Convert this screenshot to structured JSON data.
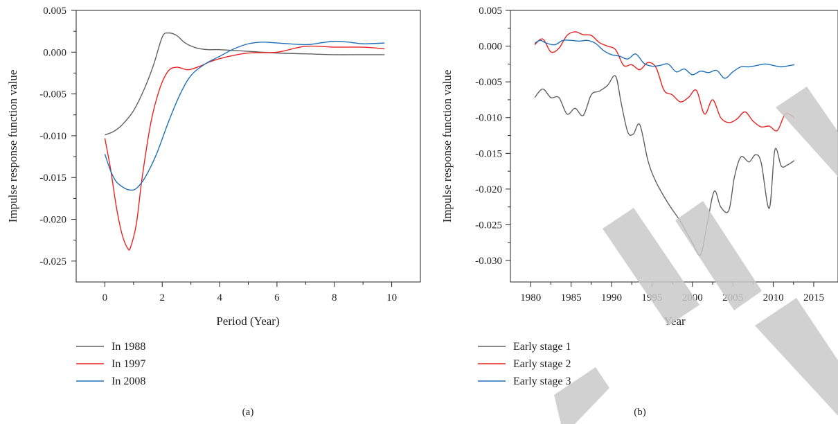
{
  "colors": {
    "series_1": "#606060",
    "series_2": "#e8231f",
    "series_3": "#1f6fb5",
    "watermark": "#c9c9c9"
  },
  "watermark": {
    "text": "RETRACTED",
    "opacity": 0.85
  },
  "chart_data": [
    {
      "type": "line",
      "caption": "(a)",
      "xlabel": "Period (Year)",
      "ylabel": "Impulse response function value",
      "xlim": [
        -1,
        11
      ],
      "ylim": [
        -0.0275,
        0.005
      ],
      "xticks": [
        "0",
        "2",
        "4",
        "6",
        "8",
        "10"
      ],
      "xtick_values": [
        0,
        2,
        4,
        6,
        8,
        10
      ],
      "yticks": [
        "0.005",
        "0.000",
        "-0.005",
        "-0.010",
        "-0.015",
        "-0.020",
        "-0.025"
      ],
      "ytick_values": [
        0.005,
        0.0,
        -0.005,
        -0.01,
        -0.015,
        -0.02,
        -0.025
      ],
      "legend_position": "below",
      "series": [
        {
          "name": "In 1988",
          "color": "#606060",
          "x": [
            0,
            0.3,
            0.6,
            1.0,
            1.4,
            1.7,
            2.0,
            2.2,
            2.5,
            2.8,
            3.2,
            3.6,
            4.0,
            5,
            6,
            7,
            8,
            9,
            9.75
          ],
          "y": [
            -0.0099,
            -0.0095,
            -0.0087,
            -0.007,
            -0.0042,
            -0.0015,
            0.0018,
            0.0023,
            0.002,
            0.0011,
            0.0005,
            0.0003,
            0.0003,
            0.0001,
            -0.0001,
            -0.0002,
            -0.0003,
            -0.0003,
            -0.0003
          ]
        },
        {
          "name": "In 1997",
          "color": "#e8231f",
          "x": [
            0,
            0.2,
            0.4,
            0.6,
            0.8,
            0.9,
            1.1,
            1.3,
            1.6,
            1.9,
            2.2,
            2.5,
            2.9,
            3.3,
            3.7,
            4.2,
            5,
            6,
            7,
            8,
            9,
            9.75
          ],
          "y": [
            -0.0103,
            -0.014,
            -0.0185,
            -0.0218,
            -0.0235,
            -0.0233,
            -0.0205,
            -0.015,
            -0.0085,
            -0.0045,
            -0.0023,
            -0.0018,
            -0.0021,
            -0.0017,
            -0.0011,
            -0.0006,
            -0.0001,
            0.0,
            0.0007,
            0.0006,
            0.0006,
            0.0004
          ]
        },
        {
          "name": "In 2008",
          "color": "#1f6fb5",
          "x": [
            0,
            0.2,
            0.4,
            0.7,
            0.9,
            1.1,
            1.4,
            1.8,
            2.2,
            2.6,
            3.0,
            3.5,
            4.0,
            4.5,
            5.0,
            5.5,
            6,
            7,
            7.5,
            8,
            8.5,
            9,
            9.75
          ],
          "y": [
            -0.0122,
            -0.0142,
            -0.0155,
            -0.0163,
            -0.0165,
            -0.0163,
            -0.015,
            -0.0122,
            -0.0085,
            -0.0052,
            -0.0028,
            -0.0014,
            -0.0005,
            0.0004,
            0.001,
            0.0012,
            0.0011,
            0.0009,
            0.0011,
            0.0013,
            0.0012,
            0.001,
            0.0011
          ]
        }
      ]
    },
    {
      "type": "line",
      "caption": "(b)",
      "xlabel": "Year",
      "ylabel": "Impulse response function value",
      "xlim": [
        1977.5,
        2018
      ],
      "ylim": [
        -0.033,
        0.005
      ],
      "xticks": [
        "1980",
        "1985",
        "1990",
        "1995",
        "2000",
        "2005",
        "2010",
        "2015"
      ],
      "xtick_values": [
        1980,
        1985,
        1990,
        1995,
        2000,
        2005,
        2010,
        2015
      ],
      "yticks": [
        "0.005",
        "0.000",
        "-0.005",
        "-0.010",
        "-0.015",
        "-0.020",
        "-0.025",
        "-0.030"
      ],
      "ytick_values": [
        0.005,
        0.0,
        -0.005,
        -0.01,
        -0.015,
        -0.02,
        -0.025,
        -0.03
      ],
      "legend_position": "below",
      "series": [
        {
          "name": "Early stage 1",
          "color": "#606060",
          "x": [
            1980.5,
            1981.5,
            1982.5,
            1983.5,
            1984.5,
            1985.5,
            1986.5,
            1987.5,
            1988.5,
            1989.5,
            1990.5,
            1991.2,
            1992,
            1992.7,
            1993.5,
            1994.5,
            1995.5,
            1997,
            1998.5,
            2000,
            2001,
            2001.8,
            2002.7,
            2003.5,
            2004.5,
            2005.2,
            2006,
            2007,
            2007.8,
            2008.5,
            2009.5,
            2010.2,
            2011,
            2011.8,
            2012.6
          ],
          "y": [
            -0.0072,
            -0.006,
            -0.0072,
            -0.0072,
            -0.0095,
            -0.0087,
            -0.0097,
            -0.0068,
            -0.0063,
            -0.0055,
            -0.0042,
            -0.008,
            -0.012,
            -0.0123,
            -0.011,
            -0.016,
            -0.019,
            -0.022,
            -0.0245,
            -0.0275,
            -0.0292,
            -0.025,
            -0.0203,
            -0.0225,
            -0.023,
            -0.0183,
            -0.0155,
            -0.0162,
            -0.0152,
            -0.0163,
            -0.0227,
            -0.0145,
            -0.0168,
            -0.0166,
            -0.016
          ]
        },
        {
          "name": "Early stage 2",
          "color": "#e8231f",
          "x": [
            1980.5,
            1981.5,
            1982.5,
            1983.5,
            1984.5,
            1985.5,
            1986.5,
            1987.5,
            1988.5,
            1989.5,
            1990.5,
            1991.5,
            1992.5,
            1993.5,
            1994.5,
            1995.5,
            1996.5,
            1997.5,
            1998.5,
            1999.5,
            2000.5,
            2001.5,
            2002.5,
            2003.5,
            2004.5,
            2005.5,
            2006.5,
            2007.5,
            2008.5,
            2009.5,
            2010.5,
            2011.5,
            2012.6
          ],
          "y": [
            0.0002,
            0.001,
            -0.0008,
            -0.0003,
            0.0015,
            0.002,
            0.0016,
            0.0015,
            0.0005,
            0.0,
            -0.0005,
            -0.0027,
            -0.0026,
            -0.0033,
            -0.0023,
            -0.003,
            -0.0062,
            -0.0068,
            -0.0078,
            -0.0072,
            -0.0062,
            -0.0095,
            -0.0075,
            -0.01,
            -0.0107,
            -0.0102,
            -0.0092,
            -0.0105,
            -0.0113,
            -0.0112,
            -0.0118,
            -0.0095,
            -0.01
          ]
        },
        {
          "name": "Early stage 3",
          "color": "#1f6fb5",
          "x": [
            1980.5,
            1981.2,
            1982,
            1983,
            1984,
            1985,
            1986,
            1987,
            1988,
            1989,
            1990,
            1991,
            1992,
            1993,
            1994,
            1995,
            1996,
            1997,
            1998,
            1999,
            2000,
            2001,
            2002,
            2003,
            2004,
            2005,
            2006,
            2007,
            2008,
            2009,
            2010,
            2011,
            2012.6
          ],
          "y": [
            0.0004,
            0.0008,
            0.0004,
            0.0002,
            0.0008,
            0.0008,
            0.0007,
            0.0008,
            0.0004,
            -0.0006,
            -0.0012,
            -0.0014,
            -0.0018,
            -0.0011,
            -0.0024,
            -0.0028,
            -0.0027,
            -0.0025,
            -0.0036,
            -0.0032,
            -0.004,
            -0.0035,
            -0.0037,
            -0.0034,
            -0.0045,
            -0.0036,
            -0.0029,
            -0.0029,
            -0.0027,
            -0.0025,
            -0.0027,
            -0.0029,
            -0.0026
          ]
        }
      ]
    }
  ]
}
